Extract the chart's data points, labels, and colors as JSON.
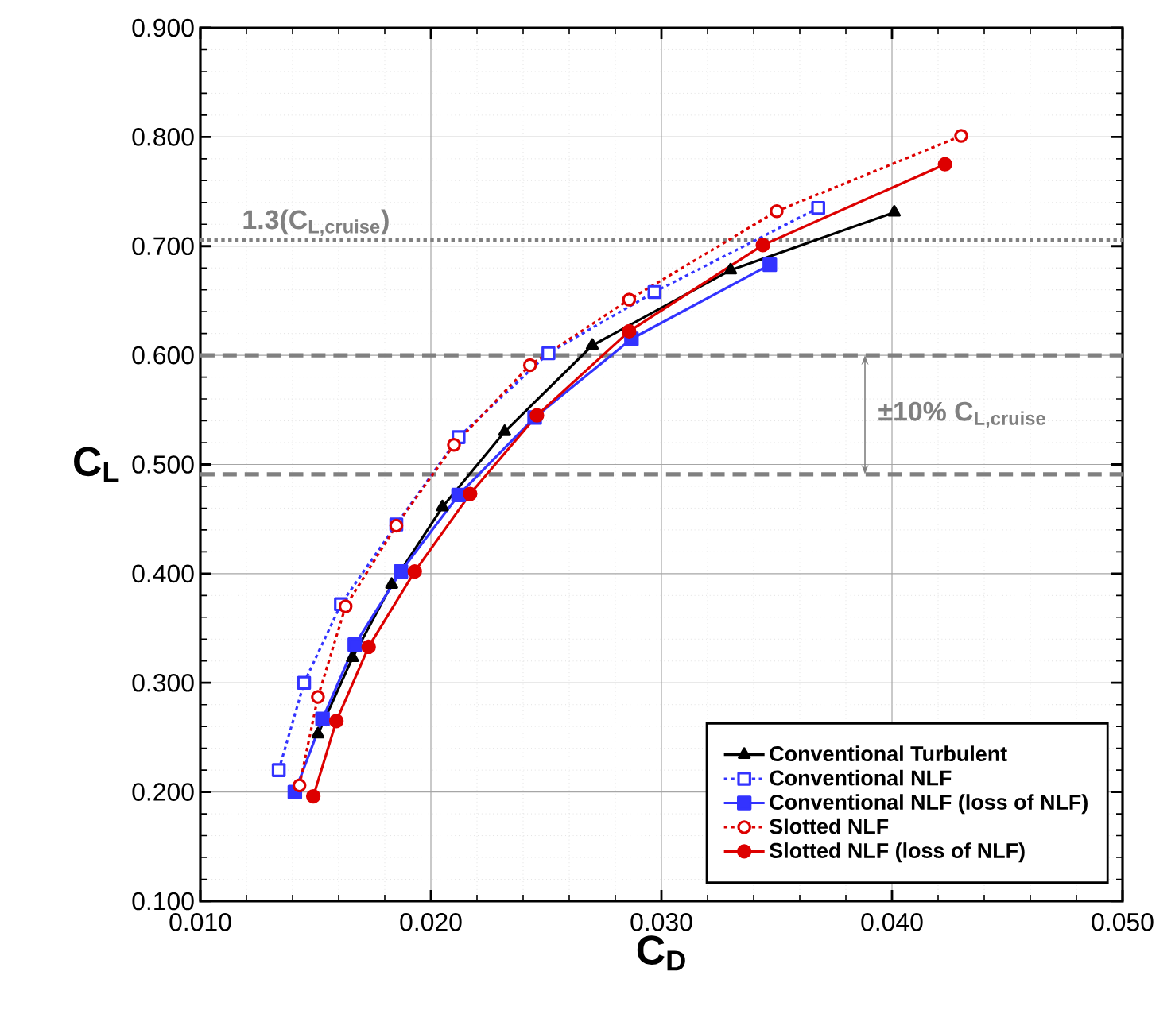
{
  "chart_data": {
    "type": "line",
    "xlabel": "C$_{D}$",
    "ylabel": "C$_{L}$",
    "xlim": [
      0.01,
      0.05
    ],
    "ylim": [
      0.1,
      0.9
    ],
    "xticks": [
      {
        "value": 0.01,
        "label": "0.010"
      },
      {
        "value": 0.02,
        "label": "0.020"
      },
      {
        "value": 0.03,
        "label": "0.030"
      },
      {
        "value": 0.04,
        "label": "0.040"
      },
      {
        "value": 0.05,
        "label": "0.050"
      }
    ],
    "yticks": [
      {
        "value": 0.1,
        "label": "0.100"
      },
      {
        "value": 0.2,
        "label": "0.200"
      },
      {
        "value": 0.3,
        "label": "0.300"
      },
      {
        "value": 0.4,
        "label": "0.400"
      },
      {
        "value": 0.5,
        "label": "0.500"
      },
      {
        "value": 0.6,
        "label": "0.600"
      },
      {
        "value": 0.7,
        "label": "0.700"
      },
      {
        "value": 0.8,
        "label": "0.800"
      },
      {
        "value": 0.9,
        "label": "0.900"
      }
    ],
    "grid": true,
    "legend": "bottom right",
    "series": [
      {
        "name": "Conventional Turbulent",
        "color": "#000000",
        "marker": "triangle",
        "line_style": "solid",
        "x": [
          0.0151,
          0.0166,
          0.0183,
          0.0205,
          0.0232,
          0.027,
          0.033,
          0.0401
        ],
        "values": [
          0.253,
          0.323,
          0.39,
          0.461,
          0.53,
          0.609,
          0.678,
          0.731
        ]
      },
      {
        "name": "Conventional NLF",
        "color": "#3333ff",
        "marker": "square",
        "line_style": "dotted",
        "x": [
          0.0134,
          0.0145,
          0.0161,
          0.0185,
          0.0212,
          0.0251,
          0.0297,
          0.0368
        ],
        "values": [
          0.22,
          0.3,
          0.372,
          0.445,
          0.525,
          0.602,
          0.658,
          0.735
        ]
      },
      {
        "name": "Conventional NLF (loss of NLF)",
        "color": "#3333ff",
        "marker": "square",
        "line_style": "solid",
        "x": [
          0.0141,
          0.0153,
          0.0167,
          0.0187,
          0.0212,
          0.0245,
          0.0287,
          0.0347
        ],
        "values": [
          0.2,
          0.267,
          0.335,
          0.402,
          0.472,
          0.543,
          0.615,
          0.683
        ]
      },
      {
        "name": "Slotted NLF",
        "color": "#dd0000",
        "marker": "circle",
        "line_style": "dotted",
        "x": [
          0.0143,
          0.0151,
          0.0163,
          0.0185,
          0.021,
          0.0243,
          0.0286,
          0.035,
          0.043
        ],
        "values": [
          0.206,
          0.287,
          0.37,
          0.444,
          0.518,
          0.591,
          0.651,
          0.732,
          0.801
        ]
      },
      {
        "name": "Slotted NLF (loss of NLF)",
        "color": "#dd0000",
        "marker": "circle",
        "line_style": "solid",
        "x": [
          0.0149,
          0.0159,
          0.0173,
          0.0193,
          0.0217,
          0.0246,
          0.0286,
          0.0344,
          0.0423
        ],
        "values": [
          0.196,
          0.265,
          0.333,
          0.402,
          0.473,
          0.545,
          0.622,
          0.701,
          0.775
        ]
      }
    ],
    "ref_lines": [
      {
        "axis": "y",
        "value": 0.706,
        "label": "1.3(C$_{L,cruise}$)",
        "color": "#808080",
        "line_style": "dotted"
      },
      {
        "axis": "y",
        "value": 0.6,
        "color": "#808080",
        "line_style": "dashed"
      },
      {
        "axis": "y",
        "value": 0.491,
        "color": "#808080",
        "line_style": "dashed"
      }
    ],
    "annotations": [
      "±10% C$_{L,cruise}$"
    ]
  }
}
